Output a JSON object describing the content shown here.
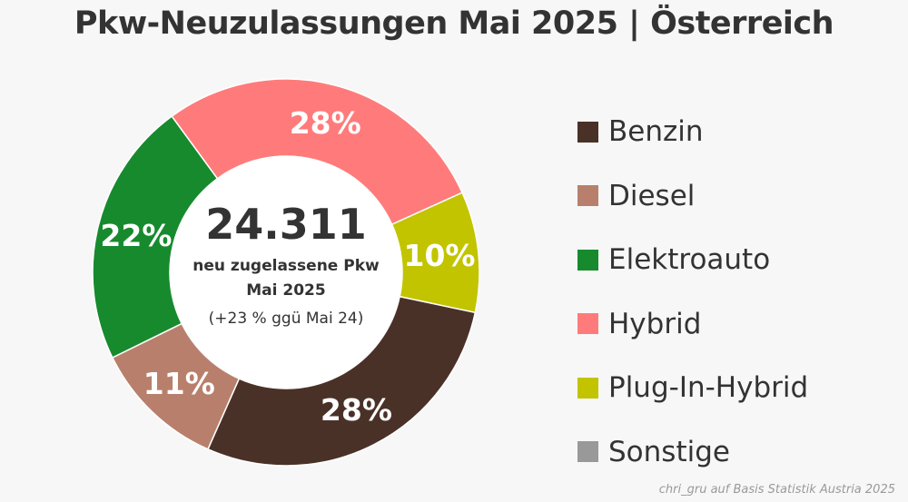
{
  "chart_data": {
    "type": "pie",
    "variant": "donut",
    "title": "Pkw-Neuzulassungen Mai 2025 | Österreich",
    "categories": [
      "Benzin",
      "Diesel",
      "Elektroauto",
      "Hybrid",
      "Plug-In-Hybrid",
      "Sonstige"
    ],
    "values": [
      28,
      11,
      22,
      28,
      10,
      0
    ],
    "value_labels": [
      "28%",
      "11%",
      "22%",
      "28%",
      "10%",
      ""
    ],
    "colors": [
      "#4a3128",
      "#b8806c",
      "#178a2e",
      "#ff7b7b",
      "#c2c400",
      "#999999"
    ],
    "center": {
      "total": "24.311",
      "subtitle": "neu zugelassene Pkw",
      "month": "Mai 2025",
      "change": "(+23 % ggü Mai 24)"
    },
    "legend_position": "right",
    "source": "chri_gru auf Basis Statistik Austria 2025"
  }
}
